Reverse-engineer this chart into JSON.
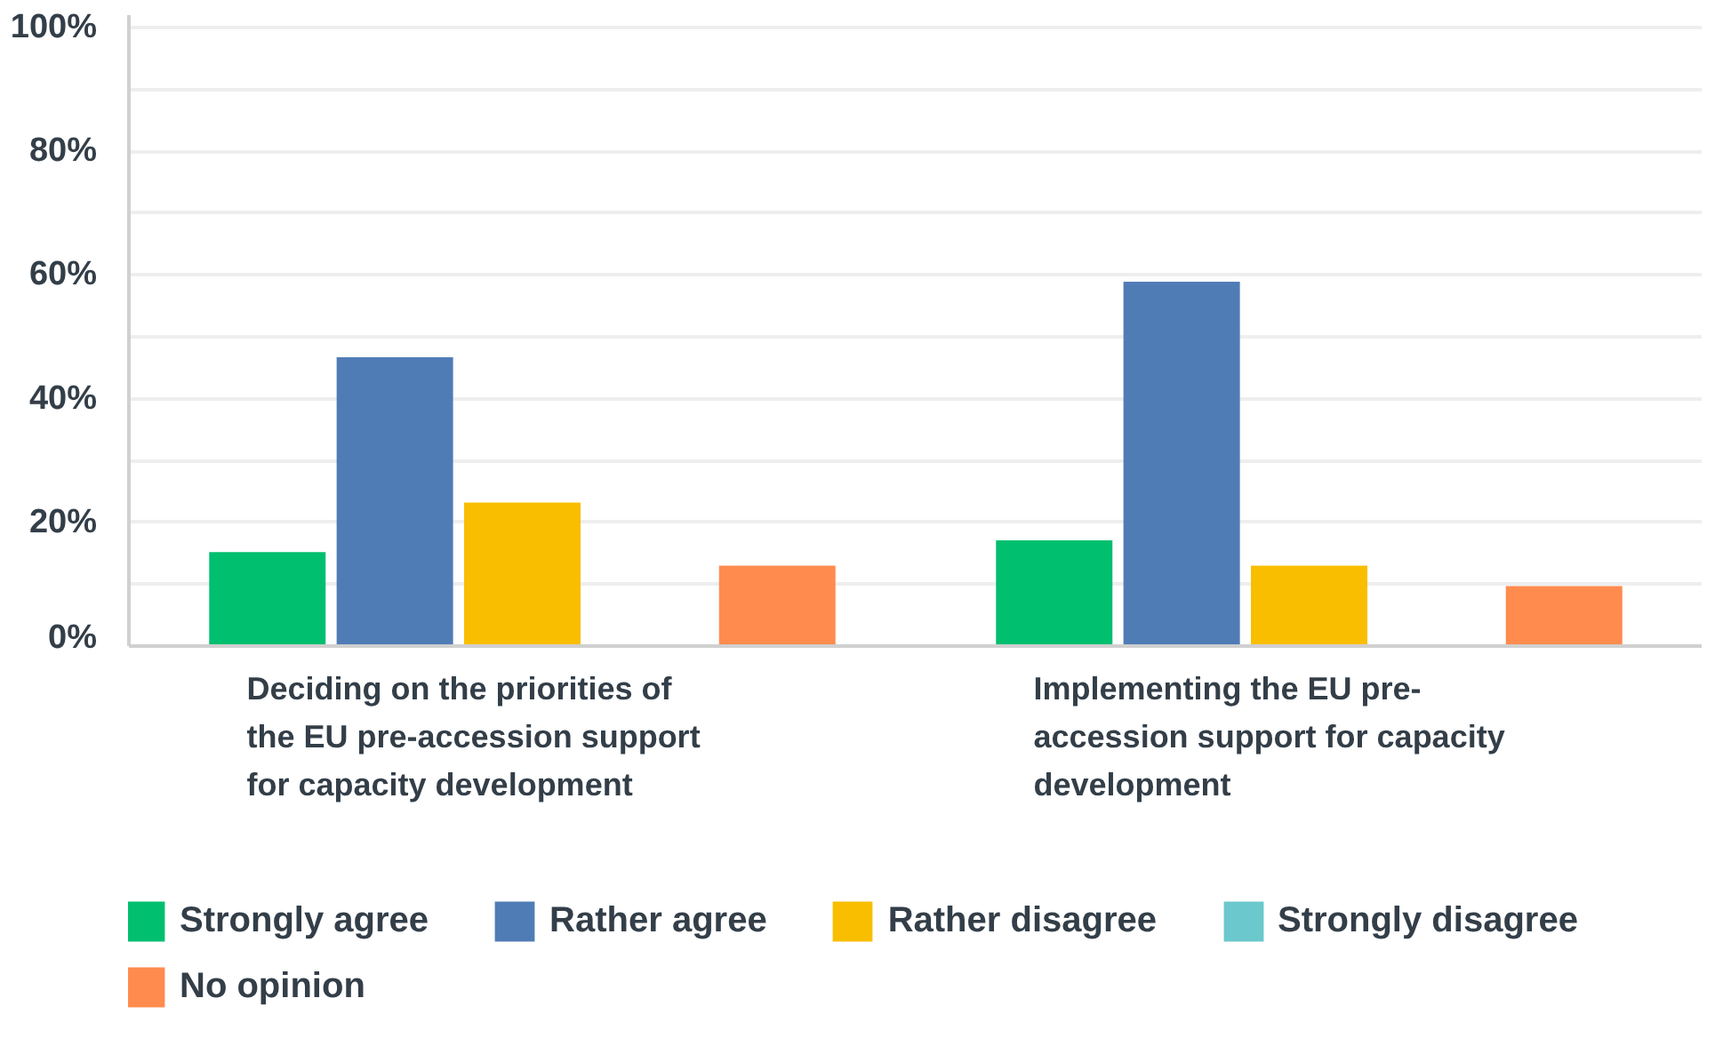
{
  "chart_data": {
    "type": "bar",
    "categories": [
      "Deciding on the priorities of the EU pre-accession support for capacity development",
      "Implementing the EU pre-accession support for capacity development"
    ],
    "series": [
      {
        "name": "Strongly agree",
        "color": "#00bf6f",
        "values": [
          15.2,
          17.1
        ]
      },
      {
        "name": "Rather agree",
        "color": "#507cb6",
        "values": [
          46.7,
          58.9
        ]
      },
      {
        "name": "Rather disagree",
        "color": "#f9be00",
        "values": [
          23.2,
          13.0
        ]
      },
      {
        "name": "Strongly disagree",
        "color": "#6bc8cd",
        "values": [
          0,
          0
        ]
      },
      {
        "name": "No opinion",
        "color": "#ff8b4f",
        "values": [
          13.0,
          9.7
        ]
      }
    ],
    "ylim": [
      0,
      102
    ],
    "yticks": [
      "0%",
      {
        "value": 10,
        "label": null
      },
      "20%",
      {
        "value": 30,
        "label": null
      },
      {
        "value": 40,
        "label": "40%"
      },
      {
        "value": 50,
        "label": null
      },
      {
        "value": 60,
        "label": "60%"
      },
      {
        "value": 70,
        "label": null
      },
      {
        "value": 80,
        "label": "80%"
      },
      {
        "value": 90,
        "label": null
      },
      {
        "value": 100,
        "label": "100%"
      }
    ],
    "grid": "y",
    "legend": "bottom"
  }
}
